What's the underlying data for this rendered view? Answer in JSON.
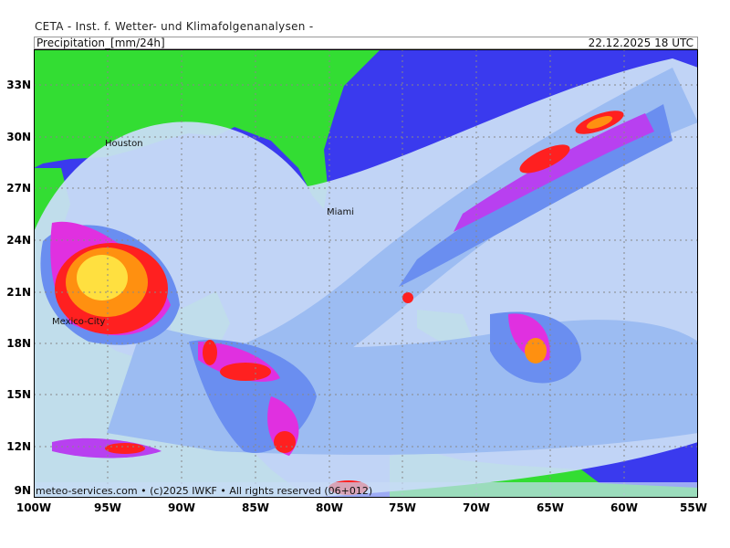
{
  "header": "CETA - Inst. f. Wetter- und Klimafolgenanalysen -",
  "title": "Precipitation_[mm/24h]",
  "valid_time": "22.12.2025 18 UTC",
  "footer": "meteo-services.com • (c)2025 IWKF • All rights reserved (06+012)",
  "lat_labels": [
    "33N",
    "30N",
    "27N",
    "24N",
    "21N",
    "18N",
    "15N",
    "12N",
    "9N"
  ],
  "lon_labels": [
    "100W",
    "95W",
    "90W",
    "85W",
    "80W",
    "75W",
    "70W",
    "65W",
    "60W",
    "55W"
  ],
  "cities": {
    "houston": "Houston",
    "miami": "Miami",
    "mexico_city": "Mexico-City"
  },
  "colors": {
    "land": "#33dd33",
    "ocean": "#3a3aee",
    "light": "#c8dcf6",
    "low": "#9cbcf2",
    "mid": "#6a8ef0",
    "purple": "#b840f0",
    "magenta": "#e030e0",
    "red": "#ff2020",
    "orange": "#ff9010",
    "yellow": "#ffe040"
  }
}
